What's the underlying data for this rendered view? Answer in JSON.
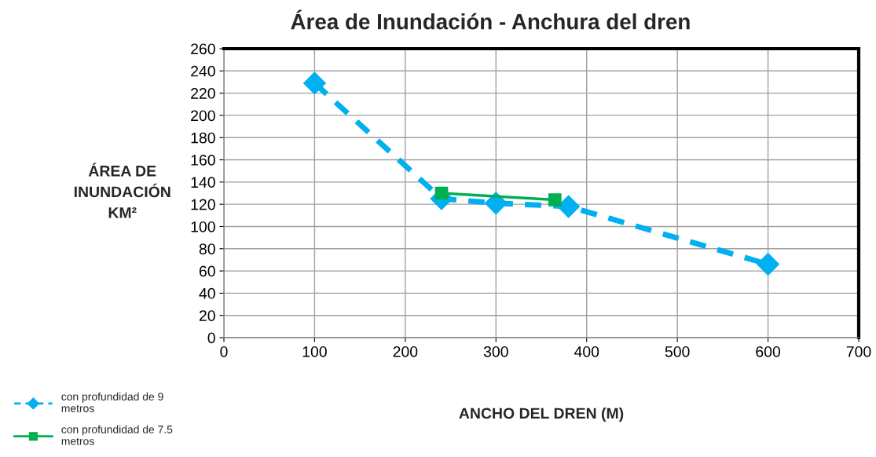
{
  "chart_data": {
    "type": "line",
    "title": "Área de Inundación - Anchura del dren",
    "xlabel": "ANCHO DEL DREN (M)",
    "ylabel": "ÁREA DE\nINUNDACIÓN\nKM²",
    "xlim": [
      0,
      700
    ],
    "xticks": [
      0,
      100,
      200,
      300,
      400,
      500,
      600,
      700
    ],
    "ylim": [
      0,
      260
    ],
    "yticks": [
      0,
      20,
      40,
      60,
      80,
      100,
      120,
      140,
      160,
      180,
      200,
      220,
      240,
      260
    ],
    "grid": true,
    "legend": "bottom left",
    "series": [
      {
        "name": "con profundidad de 9\nmetros",
        "color": "#00b0f0",
        "x": [
          100,
          240,
          300,
          380,
          600
        ],
        "values": [
          229,
          125,
          121,
          118,
          66
        ],
        "marker": "diamond",
        "line_style": "dashed"
      },
      {
        "name": "con profundidad de 7.5\nmetros",
        "color": "#00b050",
        "x": [
          240,
          365
        ],
        "values": [
          130,
          124
        ],
        "marker": "square",
        "line_style": "solid"
      }
    ]
  }
}
